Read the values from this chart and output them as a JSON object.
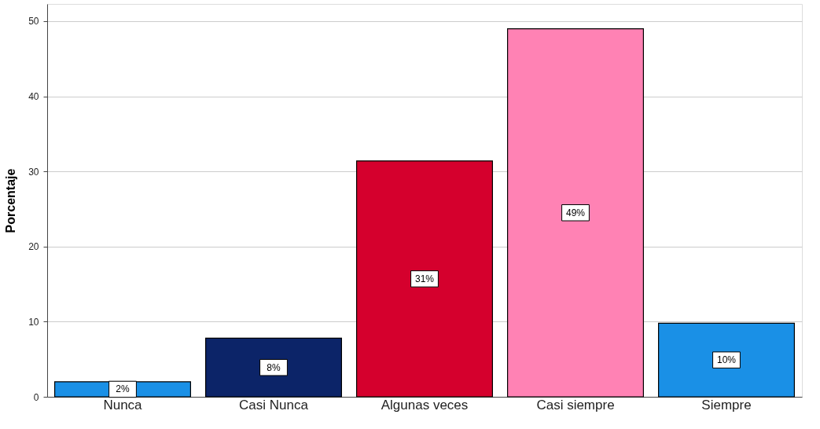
{
  "chart_data": {
    "type": "bar",
    "ylabel": "Porcentaje",
    "categories": [
      "Nunca",
      "Casi Nunca",
      "Algunas veces",
      "Casi siempre",
      "Siempre"
    ],
    "values": [
      2.0,
      7.8,
      31.4,
      49.0,
      9.8
    ],
    "colors": [
      "#1a90e6",
      "#0c2468",
      "#d5002d",
      "#ff82b4",
      "#1a90e6"
    ],
    "value_labels": [
      "2%",
      "8%",
      "31%",
      "49%",
      "10%"
    ],
    "ylim": [
      0,
      52.3
    ],
    "yticks": [
      0,
      10,
      20,
      30,
      40,
      50
    ],
    "grid": "y",
    "legend": false
  }
}
